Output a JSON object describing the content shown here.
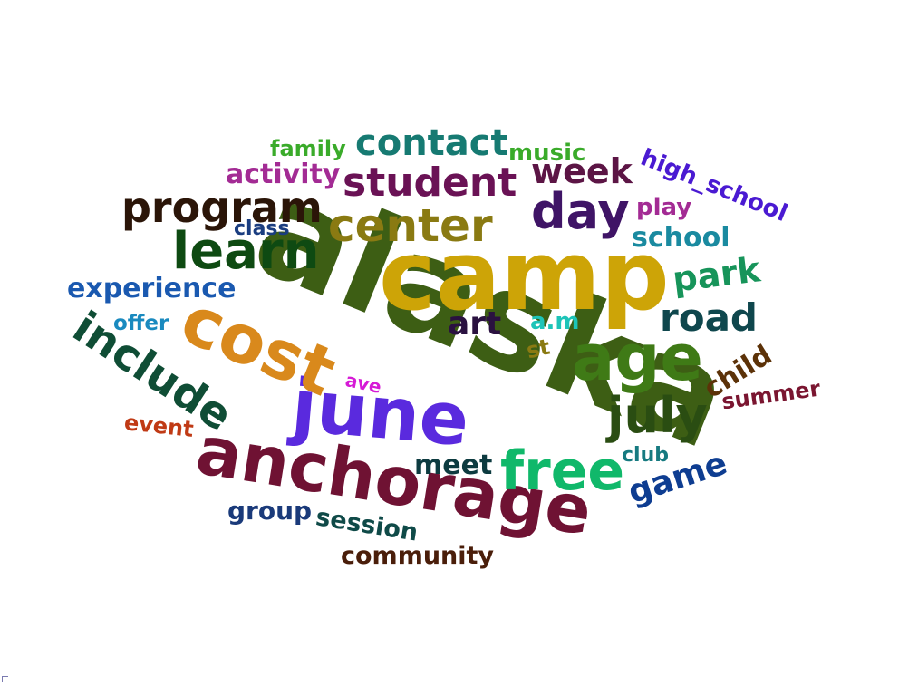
{
  "words": [
    {
      "text": "alaska",
      "color": "#3d5e14"
    },
    {
      "text": "camp",
      "color": "#cda407"
    },
    {
      "text": "anchorage",
      "color": "#6f1233"
    },
    {
      "text": "june",
      "color": "#5a2ade"
    },
    {
      "text": "cost",
      "color": "#d9891c"
    },
    {
      "text": "age",
      "color": "#3f7a16"
    },
    {
      "text": "free",
      "color": "#10b86a"
    },
    {
      "text": "center",
      "color": "#8a7a12"
    },
    {
      "text": "include",
      "color": "#0f4d35"
    },
    {
      "text": "learn",
      "color": "#0e4a12"
    },
    {
      "text": "program",
      "color": "#2b1508"
    },
    {
      "text": "day",
      "color": "#3f1466"
    },
    {
      "text": "july",
      "color": "#2a4d12"
    },
    {
      "text": "student",
      "color": "#6a1255"
    },
    {
      "text": "contact",
      "color": "#167a72"
    },
    {
      "text": "week",
      "color": "#5c1545"
    },
    {
      "text": "road",
      "color": "#0f474d"
    },
    {
      "text": "park",
      "color": "#17945a"
    },
    {
      "text": "art",
      "color": "#2a1140"
    },
    {
      "text": "game",
      "color": "#0e3d91"
    },
    {
      "text": "experience",
      "color": "#1a59b0"
    },
    {
      "text": "meet",
      "color": "#0d3b40"
    },
    {
      "text": "school",
      "color": "#1a8aa0"
    },
    {
      "text": "activity",
      "color": "#a32b94"
    },
    {
      "text": "high_school",
      "color": "#4a1ad2"
    },
    {
      "text": "community",
      "color": "#4a1e0a"
    },
    {
      "text": "child",
      "color": "#5c3208"
    },
    {
      "text": "session",
      "color": "#0f4a48"
    },
    {
      "text": "group",
      "color": "#1a3a7a"
    },
    {
      "text": "summer",
      "color": "#7a1530"
    },
    {
      "text": "a.m",
      "color": "#1dc4b8"
    },
    {
      "text": "music",
      "color": "#3aab2a"
    },
    {
      "text": "family",
      "color": "#3aab2a"
    },
    {
      "text": "play",
      "color": "#a32b94"
    },
    {
      "text": "event",
      "color": "#c03a15"
    },
    {
      "text": "offer",
      "color": "#1a8abf"
    },
    {
      "text": "class",
      "color": "#1a3d80"
    },
    {
      "text": "club",
      "color": "#167a80"
    },
    {
      "text": "st",
      "color": "#8a7a12"
    },
    {
      "text": "ave",
      "color": "#d61ad6"
    }
  ]
}
